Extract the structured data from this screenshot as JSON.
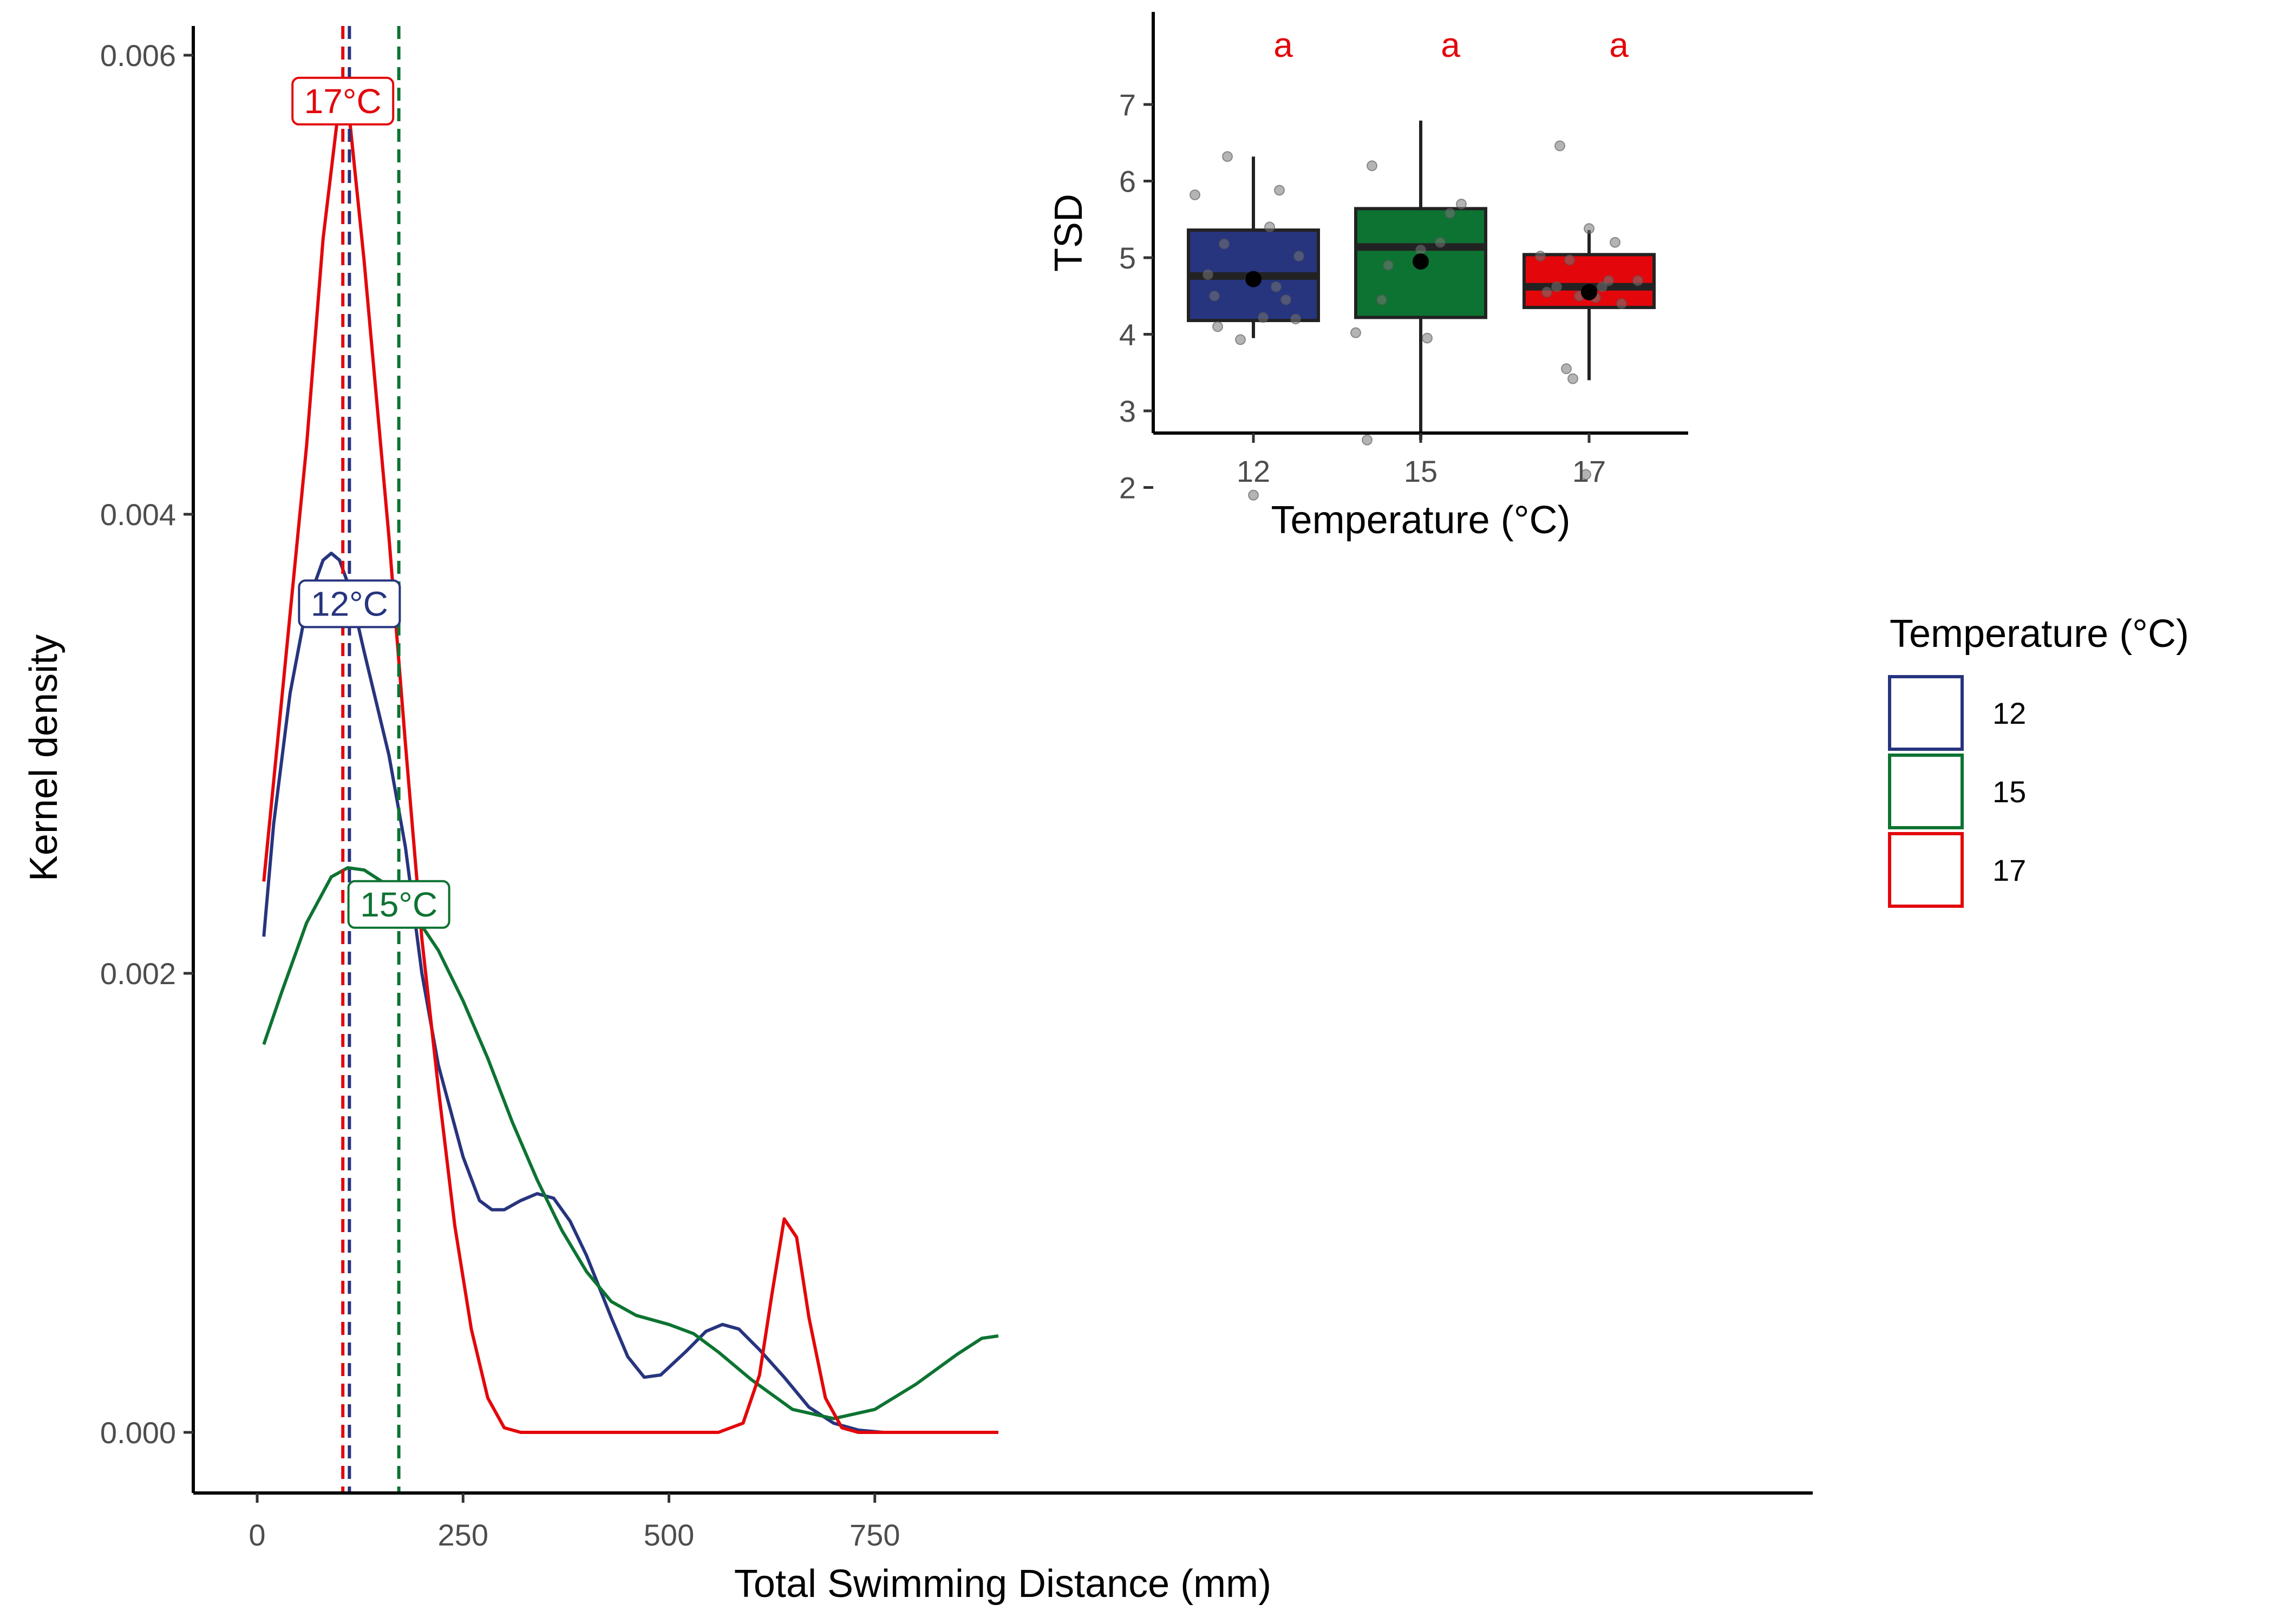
{
  "chart_data": [
    {
      "type": "line",
      "subtype": "kernel-density",
      "title": "",
      "xlabel": "Total Swimming Distance (mm)",
      "ylabel": "Kernel density",
      "xlim": [
        -20,
        950
      ],
      "ylim": [
        -0.00014,
        0.0061
      ],
      "xticks": [
        0,
        250,
        500,
        750
      ],
      "xtick_labels": [
        "0",
        "250",
        "500",
        "750"
      ],
      "yticks": [
        0,
        0.002,
        0.004,
        0.006
      ],
      "ytick_labels": [
        "0.000",
        "0.002",
        "0.004",
        "0.006"
      ],
      "grid": false,
      "series": [
        {
          "name": "12",
          "color": "#27347E",
          "mean_line_x": 112,
          "peak_label": "12°C",
          "peak_label_position": [
            112,
            0.00361
          ],
          "points": [
            [
              8,
              0.00216
            ],
            [
              20,
              0.00265
            ],
            [
              40,
              0.00322
            ],
            [
              60,
              0.0036
            ],
            [
              80,
              0.0038
            ],
            [
              90,
              0.00383
            ],
            [
              100,
              0.0038
            ],
            [
              112,
              0.00368
            ],
            [
              130,
              0.0034
            ],
            [
              160,
              0.00295
            ],
            [
              180,
              0.00255
            ],
            [
              200,
              0.002
            ],
            [
              220,
              0.0016
            ],
            [
              250,
              0.0012
            ],
            [
              270,
              0.00101
            ],
            [
              285,
              0.00097
            ],
            [
              300,
              0.00097
            ],
            [
              320,
              0.00101
            ],
            [
              340,
              0.00104
            ],
            [
              360,
              0.00102
            ],
            [
              380,
              0.00092
            ],
            [
              400,
              0.00077
            ],
            [
              430,
              0.0005
            ],
            [
              450,
              0.00033
            ],
            [
              470,
              0.00024
            ],
            [
              490,
              0.00025
            ],
            [
              520,
              0.00035
            ],
            [
              545,
              0.00044
            ],
            [
              565,
              0.00047
            ],
            [
              585,
              0.00045
            ],
            [
              610,
              0.00036
            ],
            [
              640,
              0.00024
            ],
            [
              670,
              0.00011
            ],
            [
              700,
              4e-05
            ],
            [
              730,
              1e-05
            ],
            [
              760,
              0.0
            ],
            [
              800,
              0.0
            ],
            [
              850,
              0.0
            ],
            [
              900,
              0.0
            ]
          ]
        },
        {
          "name": "15",
          "color": "#0D7332",
          "mean_line_x": 172,
          "peak_label": "15°C",
          "peak_label_position": [
            172,
            0.0023
          ],
          "points": [
            [
              8,
              0.00169
            ],
            [
              30,
              0.00192
            ],
            [
              60,
              0.00222
            ],
            [
              90,
              0.00242
            ],
            [
              110,
              0.00246
            ],
            [
              130,
              0.00245
            ],
            [
              160,
              0.00238
            ],
            [
              190,
              0.00226
            ],
            [
              220,
              0.0021
            ],
            [
              250,
              0.00188
            ],
            [
              280,
              0.00163
            ],
            [
              310,
              0.00135
            ],
            [
              340,
              0.0011
            ],
            [
              370,
              0.00088
            ],
            [
              400,
              0.0007
            ],
            [
              430,
              0.00057
            ],
            [
              460,
              0.00051
            ],
            [
              500,
              0.00047
            ],
            [
              530,
              0.00043
            ],
            [
              560,
              0.00035
            ],
            [
              600,
              0.00023
            ],
            [
              650,
              0.0001
            ],
            [
              700,
              6e-05
            ],
            [
              750,
              0.0001
            ],
            [
              800,
              0.00021
            ],
            [
              850,
              0.00034
            ],
            [
              880,
              0.00041
            ],
            [
              900,
              0.00042
            ]
          ]
        },
        {
          "name": "17",
          "color": "#E3070B",
          "mean_line_x": 104,
          "peak_label": "17°C",
          "peak_label_position": [
            104,
            0.0058
          ],
          "points": [
            [
              8,
              0.0024
            ],
            [
              30,
              0.0032
            ],
            [
              60,
              0.0043
            ],
            [
              80,
              0.0052
            ],
            [
              100,
              0.0058
            ],
            [
              110,
              0.0058
            ],
            [
              130,
              0.0051
            ],
            [
              160,
              0.0039
            ],
            [
              180,
              0.003
            ],
            [
              200,
              0.00215
            ],
            [
              220,
              0.0015
            ],
            [
              240,
              0.0009
            ],
            [
              260,
              0.00045
            ],
            [
              280,
              0.00015
            ],
            [
              300,
              2e-05
            ],
            [
              320,
              0.0
            ],
            [
              400,
              0.0
            ],
            [
              500,
              0.0
            ],
            [
              560,
              0.0
            ],
            [
              590,
              4e-05
            ],
            [
              610,
              0.00025
            ],
            [
              625,
              0.0006
            ],
            [
              640,
              0.00093
            ],
            [
              655,
              0.00085
            ],
            [
              670,
              0.0005
            ],
            [
              690,
              0.00015
            ],
            [
              710,
              2e-05
            ],
            [
              730,
              0.0
            ],
            [
              800,
              0.0
            ],
            [
              900,
              0.0
            ]
          ]
        }
      ]
    },
    {
      "type": "box",
      "title": "",
      "xlabel": "Temperature (°C)",
      "ylabel": "TSD",
      "ylim": [
        1.7,
        7
      ],
      "yticks": [
        2,
        3,
        4,
        5,
        6,
        7
      ],
      "ytick_labels": [
        "2",
        "3",
        "4",
        "5",
        "6",
        "7"
      ],
      "categories": [
        "12",
        "15",
        "17"
      ],
      "significance_letters": [
        "a",
        "a",
        "a"
      ],
      "boxes": [
        {
          "name": "12",
          "color": "#27347E",
          "min": 3.95,
          "q1": 4.18,
          "median": 4.76,
          "q3": 5.36,
          "max": 6.32,
          "mean": 4.72,
          "points": [
            [
              -0.36,
              5.82
            ],
            [
              -0.28,
              4.78
            ],
            [
              -0.24,
              4.5
            ],
            [
              -0.22,
              4.1
            ],
            [
              -0.18,
              5.18
            ],
            [
              -0.16,
              6.32
            ],
            [
              -0.08,
              3.93
            ],
            [
              -0.02,
              4.72
            ],
            [
              0.06,
              4.22
            ],
            [
              0.1,
              5.4
            ],
            [
              0.14,
              4.62
            ],
            [
              0.16,
              5.88
            ],
            [
              0.2,
              4.45
            ],
            [
              0.26,
              4.2
            ],
            [
              0.28,
              5.02
            ],
            [
              0.0,
              1.9
            ]
          ]
        },
        {
          "name": "15",
          "color": "#0D7332",
          "min": 2.62,
          "q1": 4.22,
          "median": 5.14,
          "q3": 5.64,
          "max": 6.79,
          "mean": 4.95,
          "points": [
            [
              -0.4,
              4.02
            ],
            [
              -0.33,
              2.62
            ],
            [
              -0.3,
              6.2
            ],
            [
              -0.24,
              4.45
            ],
            [
              -0.2,
              4.9
            ],
            [
              0.04,
              3.95
            ],
            [
              0.12,
              5.2
            ],
            [
              0.18,
              5.58
            ],
            [
              0.25,
              5.7
            ],
            [
              0.0,
              5.1
            ]
          ]
        },
        {
          "name": "17",
          "color": "#E3070B",
          "min": 3.4,
          "q1": 4.35,
          "median": 4.62,
          "q3": 5.04,
          "max": 5.36,
          "mean": 4.55,
          "points": [
            [
              -0.3,
              5.02
            ],
            [
              -0.26,
              4.55
            ],
            [
              -0.2,
              4.62
            ],
            [
              -0.18,
              6.46
            ],
            [
              -0.12,
              4.97
            ],
            [
              -0.06,
              4.5
            ],
            [
              -0.02,
              2.17
            ],
            [
              -0.1,
              3.42
            ],
            [
              -0.14,
              3.55
            ],
            [
              0.04,
              4.48
            ],
            [
              0.08,
              4.62
            ],
            [
              0.12,
              4.7
            ],
            [
              0.16,
              5.2
            ],
            [
              0.2,
              4.4
            ],
            [
              0.3,
              4.7
            ],
            [
              0.0,
              5.38
            ]
          ]
        }
      ]
    }
  ],
  "legend": {
    "title": "Temperature (°C)",
    "items": [
      {
        "label": "12",
        "color": "#27347E"
      },
      {
        "label": "15",
        "color": "#0D7332"
      },
      {
        "label": "17",
        "color": "#E3070B"
      }
    ]
  }
}
